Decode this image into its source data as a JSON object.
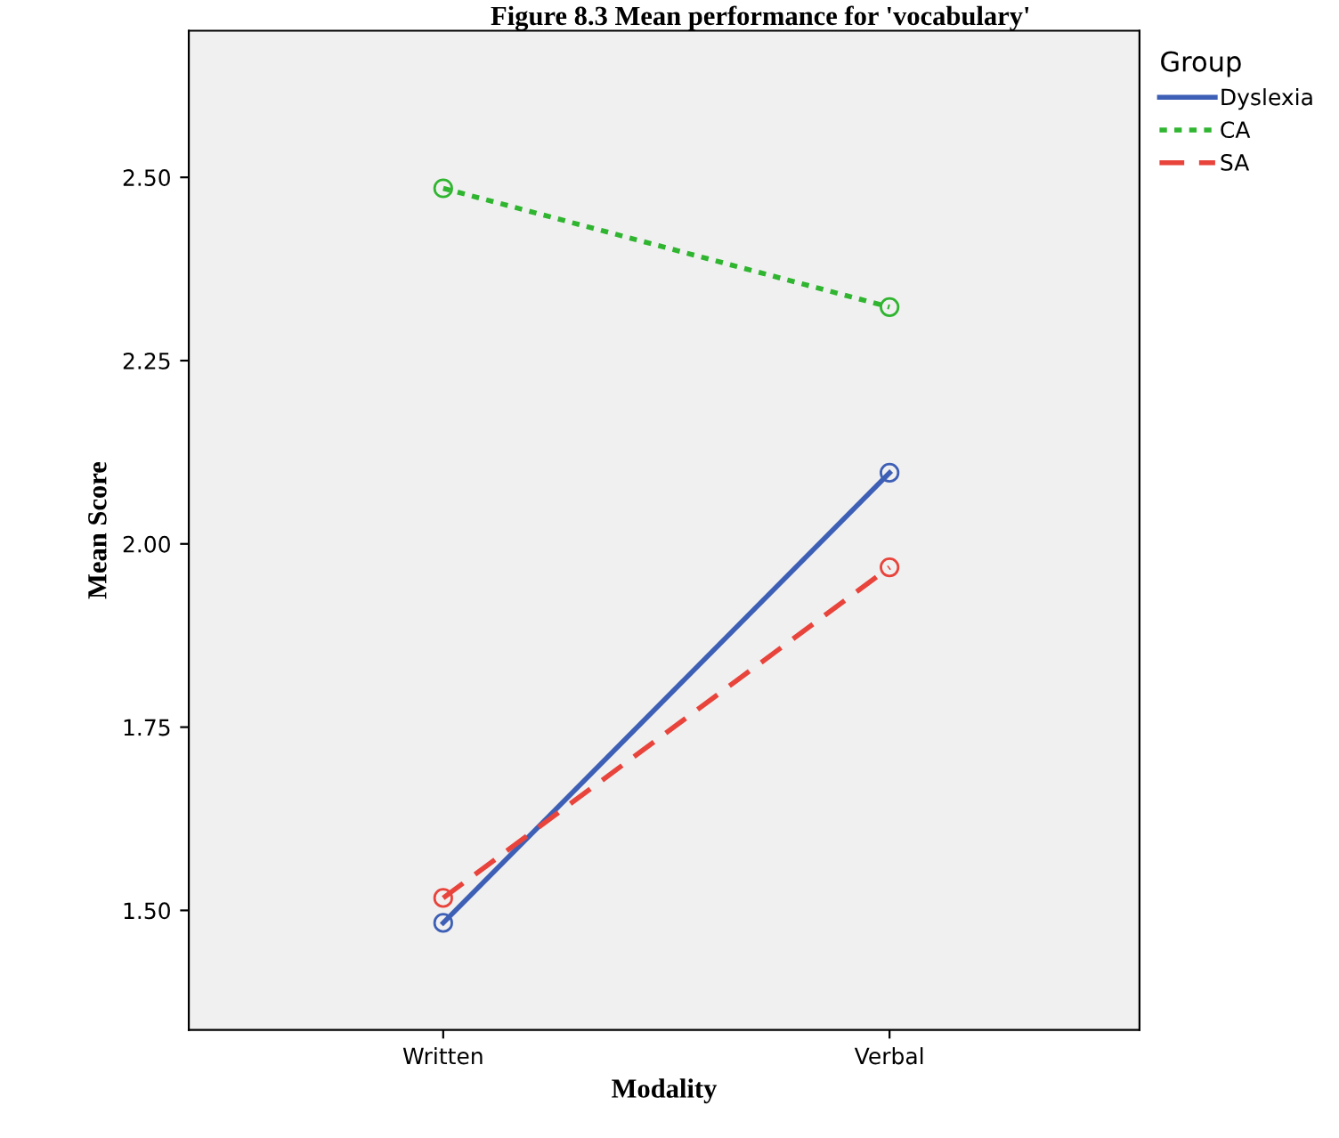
{
  "chart_data": {
    "type": "line",
    "title": "Figure 8.3 Mean performance for 'vocabulary'",
    "xlabel": "Modality",
    "ylabel": "Mean Score",
    "legend_title": "Group",
    "categories": [
      "Written",
      "Verbal"
    ],
    "series": [
      {
        "name": "Dyslexia",
        "color": "#3d5fb5",
        "values": [
          1.483,
          2.097
        ],
        "line_style": "solid"
      },
      {
        "name": "CA",
        "color": "#2fb52f",
        "values": [
          2.485,
          2.323
        ],
        "line_style": "dotted"
      },
      {
        "name": "SA",
        "color": "#e8443c",
        "values": [
          1.517,
          1.968
        ],
        "line_style": "dashed"
      }
    ],
    "ylim": [
      1.337,
      2.7
    ],
    "yticks": [
      {
        "value": 1.5,
        "label": "1.50"
      },
      {
        "value": 1.75,
        "label": "1.75"
      },
      {
        "value": 2.0,
        "label": "2.00"
      },
      {
        "value": 2.25,
        "label": "2.25"
      },
      {
        "value": 2.5,
        "label": "2.50"
      }
    ],
    "marker": "circle",
    "legend": "right",
    "grid": false
  }
}
